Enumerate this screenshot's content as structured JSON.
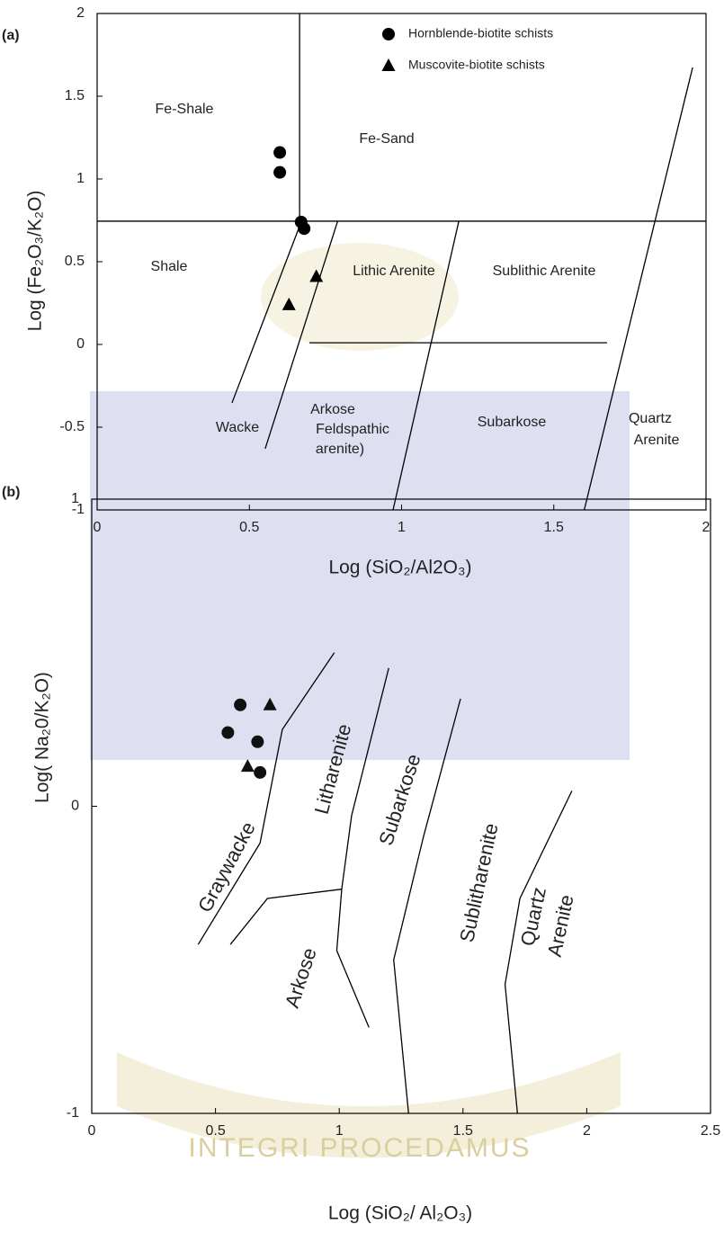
{
  "watermark": "INTEGRI PROCEDAMUS",
  "chart_data": [
    {
      "type": "scatter",
      "label": "(a)",
      "x_label": "Log (SiO₂/Al2O₃)",
      "y_label": "Log (Fe₂O₃/K₂O)",
      "xlim": [
        0,
        2
      ],
      "ylim": [
        -1,
        2
      ],
      "xticks": [
        0,
        0.5,
        1,
        1.5,
        2
      ],
      "yticks": [
        -1,
        -0.5,
        0,
        0.5,
        1,
        1.5,
        2
      ],
      "series": [
        {
          "name": "Hornblende-biotite schists",
          "marker": "circle",
          "color": "#000000",
          "x": [
            0.6,
            0.6,
            0.67,
            0.68
          ],
          "values": [
            1.16,
            1.04,
            0.74,
            0.7
          ]
        },
        {
          "name": "Muscovite-biotite schists",
          "marker": "triangle",
          "color": "#000000",
          "x": [
            0.72,
            0.63
          ],
          "values": [
            0.41,
            0.24
          ]
        }
      ],
      "boundaries": [
        {
          "x": [
            0.665,
            0.665
          ],
          "y": [
            2,
            0.745
          ]
        },
        {
          "x": [
            0,
            2
          ],
          "y": [
            0.745,
            0.745
          ]
        },
        {
          "x": [
            0.443,
            0.67
          ],
          "y": [
            -0.353,
            0.739
          ]
        },
        {
          "x": [
            0.552,
            0.79
          ],
          "y": [
            -0.63,
            0.745
          ]
        },
        {
          "x": [
            0.972,
            1.188
          ],
          "y": [
            -1,
            0.745
          ]
        },
        {
          "x": [
            0.697,
            1.675
          ],
          "y": [
            0.01,
            0.01
          ]
        },
        {
          "x": [
            1.6,
            1.956
          ],
          "y": [
            -1,
            1.674
          ]
        }
      ],
      "region_labels": [
        "Fe-Shale",
        "Fe-Sand",
        "Shale",
        "Lithic Arenite",
        "Sublithic Arenite",
        "Wacke",
        "Arkose",
        "Feldspathic",
        "arenite)",
        "Subarkose",
        "Quartz",
        "Arenite"
      ]
    },
    {
      "type": "scatter",
      "label": "(b)",
      "x_label": "Log (SiO₂/ Al₂O₃)",
      "y_label": "Log( Na₂0/K₂O)",
      "xlim": [
        0,
        2.5
      ],
      "ylim": [
        -1,
        1
      ],
      "xticks": [
        0,
        0.5,
        1,
        1.5,
        2,
        2.5
      ],
      "yticks": [
        -1,
        0,
        1
      ],
      "series": [
        {
          "marker": "circle",
          "color": "#111111",
          "x": [
            0.6,
            0.55,
            0.67,
            0.68
          ],
          "values": [
            0.33,
            0.24,
            0.21,
            0.11
          ]
        },
        {
          "marker": "triangle",
          "color": "#111111",
          "x": [
            0.72,
            0.63
          ],
          "values": [
            0.33,
            0.13
          ]
        }
      ],
      "boundaries": [
        {
          "x": [
            0.43,
            0.68,
            0.77,
            0.98
          ],
          "y": [
            -0.45,
            -0.12,
            0.25,
            0.5
          ]
        },
        {
          "x": [
            0.56,
            0.71,
            1.01
          ],
          "y": [
            -0.45,
            -0.3,
            -0.27
          ]
        },
        {
          "x": [
            1.12,
            0.99,
            1.01,
            1.05,
            1.2
          ],
          "y": [
            -0.72,
            -0.47,
            -0.27,
            -0.03,
            0.45
          ]
        },
        {
          "x": [
            1.28,
            1.22,
            1.34,
            1.49
          ],
          "y": [
            -1,
            -0.5,
            -0.1,
            0.35
          ]
        },
        {
          "x": [
            1.72,
            1.67,
            1.73,
            1.94
          ],
          "y": [
            -1,
            -0.58,
            -0.3,
            0.05
          ]
        }
      ],
      "region_labels": [
        "Graywacke",
        "Litharenite",
        "Subarkose",
        "Sublitharenite",
        "Quartz",
        "Arenite",
        "Arkose"
      ]
    }
  ]
}
